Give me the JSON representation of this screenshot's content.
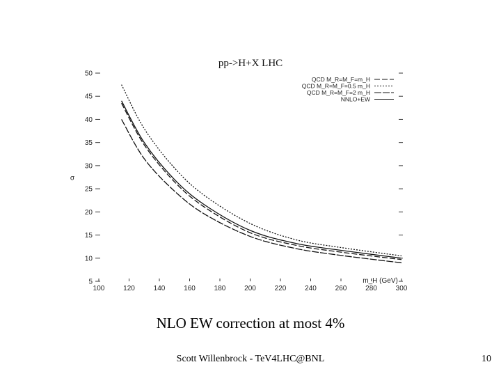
{
  "chart_data": {
    "type": "line",
    "title": "pp->H+X    LHC",
    "xlabel": "m_H (GeV)",
    "ylabel": "σ",
    "xlim": [
      100,
      300
    ],
    "ylim": [
      5,
      50
    ],
    "xticks": [
      100,
      120,
      140,
      160,
      180,
      200,
      220,
      240,
      260,
      280,
      300
    ],
    "yticks": [
      5,
      10,
      15,
      20,
      25,
      30,
      35,
      40,
      45,
      50
    ],
    "grid": false,
    "legend_position": "top-right",
    "series": [
      {
        "name": "QCD M_R=M_F=m_H",
        "dash": "8 3",
        "x": [
          115,
          130,
          150,
          170,
          200,
          230,
          260,
          300
        ],
        "y": [
          43.5,
          34.5,
          26.5,
          21.0,
          15.5,
          12.8,
          11.3,
          9.7
        ]
      },
      {
        "name": "QCD M_R=M_F=0.5 m_H",
        "dash": "2 2",
        "x": [
          115,
          130,
          150,
          170,
          200,
          230,
          260,
          300
        ],
        "y": [
          47.5,
          38.0,
          29.5,
          23.5,
          17.5,
          14.0,
          12.3,
          10.5
        ]
      },
      {
        "name": "QCD M_R=M_F=2 m_H",
        "dash": "10 2",
        "x": [
          115,
          130,
          150,
          170,
          200,
          230,
          260,
          300
        ],
        "y": [
          40.0,
          31.5,
          24.5,
          19.5,
          14.7,
          12.1,
          10.6,
          9.0
        ]
      },
      {
        "name": "NNLO+EW",
        "dash": "",
        "x": [
          115,
          130,
          150,
          170,
          200,
          230,
          260,
          300
        ],
        "y": [
          44.0,
          35.0,
          27.0,
          21.5,
          16.0,
          13.2,
          11.7,
          10.0
        ]
      }
    ]
  },
  "caption": "NLO EW correction at most 4%",
  "footer": {
    "center": "Scott Willenbrock - TeV4LHC@BNL",
    "page": "10"
  }
}
